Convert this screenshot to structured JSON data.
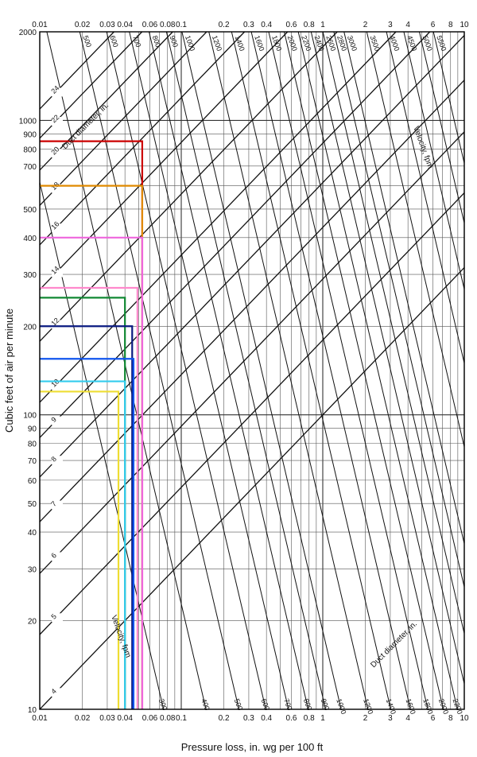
{
  "chart_data": {
    "type": "line",
    "title": "",
    "xlabel": "Pressure loss, in. wg per 100 ft",
    "ylabel": "Cubic feet of air per minute",
    "x_scale": "log",
    "y_scale": "log",
    "xlim": [
      0.01,
      10
    ],
    "ylim": [
      10,
      2000
    ],
    "grid": true,
    "x_ticks": [
      "0.01",
      "0.02",
      "0.03",
      "0.04",
      "0.06",
      "0.08",
      "0.1",
      "0.2",
      "0.3",
      "0.4",
      "0.6",
      "0.8",
      "1",
      "2",
      "3",
      "4",
      "6",
      "8",
      "10"
    ],
    "x_tick_values": [
      0.01,
      0.02,
      0.03,
      0.04,
      0.06,
      0.08,
      0.1,
      0.2,
      0.3,
      0.4,
      0.6,
      0.8,
      1,
      2,
      3,
      4,
      6,
      8,
      10
    ],
    "y_ticks": [
      "10",
      "20",
      "30",
      "40",
      "50",
      "60",
      "70",
      "80",
      "90",
      "100",
      "200",
      "300",
      "400",
      "500",
      "700",
      "800",
      "900",
      "1000",
      "2000"
    ],
    "y_tick_values": [
      10,
      20,
      30,
      40,
      50,
      60,
      70,
      80,
      90,
      100,
      200,
      300,
      400,
      500,
      700,
      800,
      900,
      1000,
      2000
    ],
    "duct_diameter_label": "Duct diameter, in.",
    "velocity_label": "Velocity, fpm",
    "duct_diameters": [
      4,
      5,
      6,
      7,
      8,
      9,
      10,
      12,
      14,
      16,
      18,
      20,
      22,
      24
    ],
    "velocities": [
      300,
      400,
      500,
      600,
      700,
      800,
      900,
      1000,
      1200,
      1400,
      1600,
      1800,
      2000,
      2200,
      2400,
      2600,
      2800,
      3000,
      3500,
      4000,
      4500,
      5000,
      5500
    ],
    "series": [
      {
        "name": "",
        "color": "#cc0000",
        "values": [
          {
            "x": 0.053,
            "y": 850
          }
        ]
      },
      {
        "name": "",
        "color": "#e08a00",
        "values": [
          {
            "x": 0.053,
            "y": 600
          }
        ]
      },
      {
        "name": "",
        "color": "#ee66dd",
        "values": [
          {
            "x": 0.053,
            "y": 400
          }
        ]
      },
      {
        "name": "",
        "color": "#ff88cc",
        "values": [
          {
            "x": 0.049,
            "y": 270
          }
        ]
      },
      {
        "name": "",
        "color": "#118833",
        "values": [
          {
            "x": 0.04,
            "y": 250
          }
        ]
      },
      {
        "name": "",
        "color": "#0a1a80",
        "values": [
          {
            "x": 0.045,
            "y": 200
          }
        ]
      },
      {
        "name": "",
        "color": "#1155ee",
        "values": [
          {
            "x": 0.046,
            "y": 155
          }
        ]
      },
      {
        "name": "",
        "color": "#33ccee",
        "values": [
          {
            "x": 0.04,
            "y": 130
          }
        ]
      },
      {
        "name": "",
        "color": "#eedd33",
        "values": [
          {
            "x": 0.036,
            "y": 120
          }
        ]
      }
    ]
  }
}
